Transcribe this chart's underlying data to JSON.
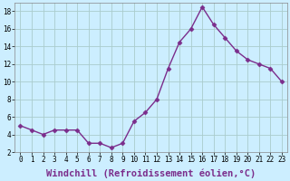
{
  "x": [
    0,
    1,
    2,
    3,
    4,
    5,
    6,
    7,
    8,
    9,
    10,
    11,
    12,
    13,
    14,
    15,
    16,
    17,
    18,
    19,
    20,
    21,
    22,
    23
  ],
  "y": [
    5.0,
    4.5,
    4.0,
    4.5,
    4.5,
    4.5,
    3.0,
    3.0,
    2.5,
    3.0,
    5.5,
    6.5,
    8.0,
    11.5,
    14.5,
    16.0,
    18.5,
    16.5,
    15.0,
    13.5,
    12.5,
    12.0,
    11.5,
    10.0
  ],
  "line_color": "#7B2D8B",
  "marker": "D",
  "marker_size": 2.5,
  "background_color": "#cceeff",
  "grid_color": "#aacccc",
  "xlabel": "Windchill (Refroidissement éolien,°C)",
  "xlabel_fontsize": 7.5,
  "ylim": [
    2,
    19
  ],
  "xlim": [
    -0.5,
    23.5
  ],
  "yticks": [
    2,
    4,
    6,
    8,
    10,
    12,
    14,
    16,
    18
  ],
  "xticks": [
    0,
    1,
    2,
    3,
    4,
    5,
    6,
    7,
    8,
    9,
    10,
    11,
    12,
    13,
    14,
    15,
    16,
    17,
    18,
    19,
    20,
    21,
    22,
    23
  ],
  "tick_fontsize": 5.5,
  "line_width": 1.0,
  "fig_width": 3.2,
  "fig_height": 2.0,
  "dpi": 100
}
